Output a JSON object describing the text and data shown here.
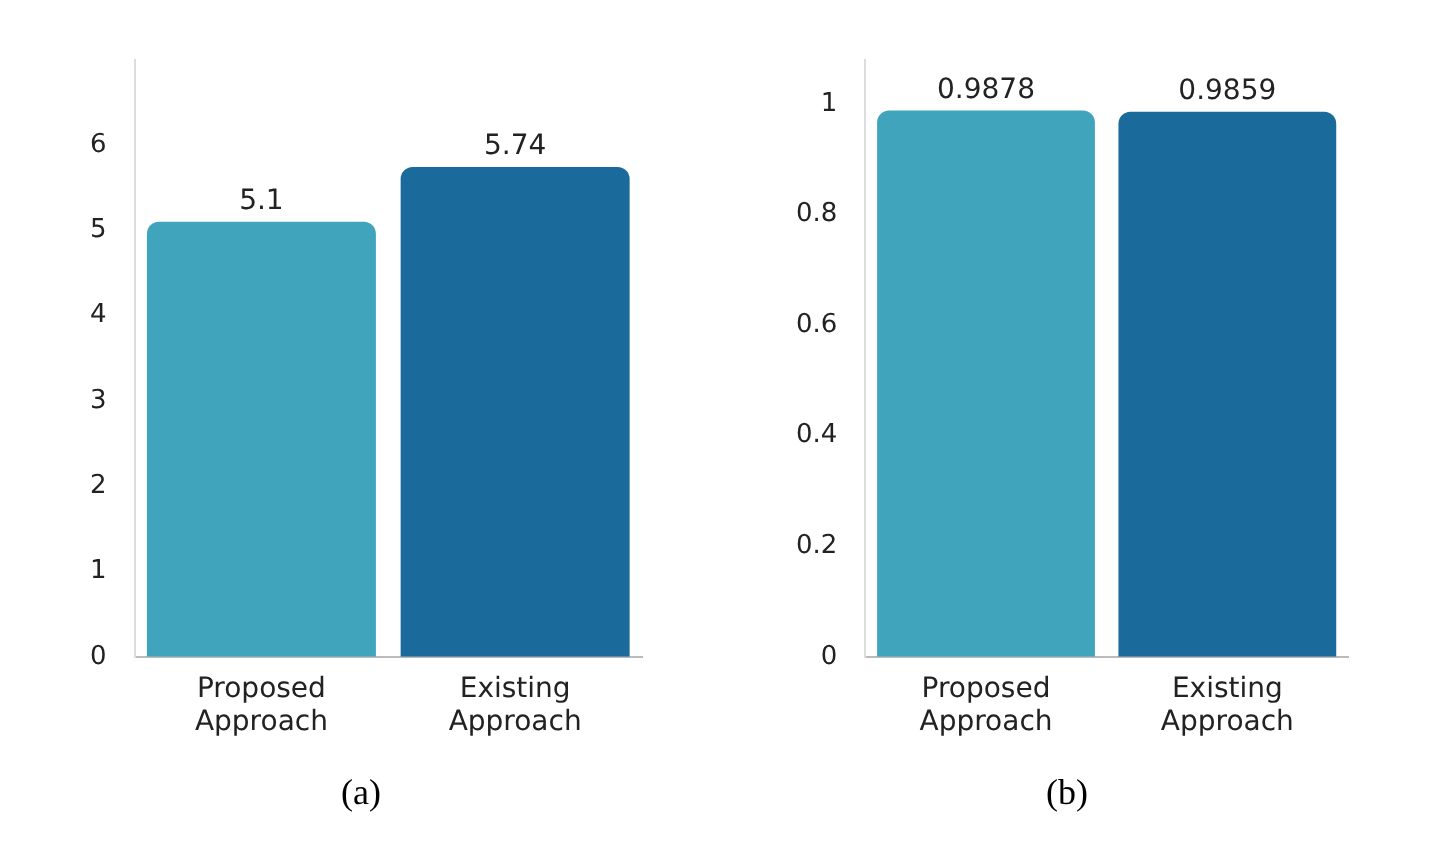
{
  "chart_data": [
    {
      "type": "bar",
      "categories": [
        "Proposed Approach",
        "Existing Approach"
      ],
      "values": [
        5.1,
        5.74
      ],
      "colors": [
        "#41a4bd",
        "#1a6b9c"
      ],
      "ylim": [
        0,
        7
      ],
      "yticks": [
        0,
        1,
        2,
        3,
        4,
        5,
        6
      ],
      "grid": false,
      "data_labels": true,
      "annotations": [
        "(a)"
      ]
    },
    {
      "type": "bar",
      "categories": [
        "Proposed Approach",
        "Existing Approach"
      ],
      "values": [
        0.9878,
        0.9859
      ],
      "colors": [
        "#41a4bd",
        "#1a6b9c"
      ],
      "ylim": [
        0,
        1.08
      ],
      "yticks": [
        0,
        0.2,
        0.4,
        0.6,
        0.8,
        1
      ],
      "grid": false,
      "data_labels": true,
      "annotations": [
        "(b)"
      ]
    }
  ]
}
